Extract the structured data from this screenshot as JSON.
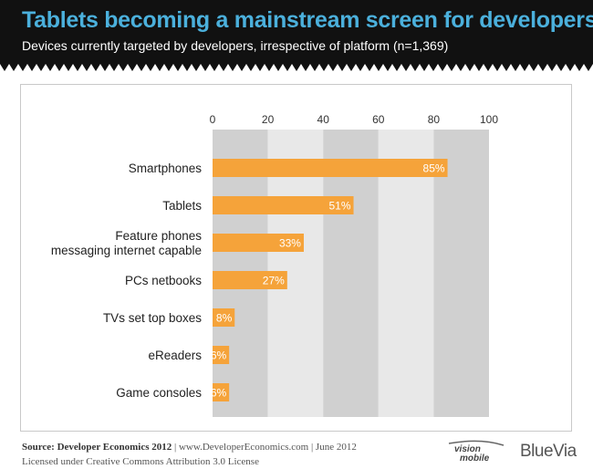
{
  "header": {
    "title": "Tablets becoming a mainstream screen for developers",
    "subtitle": "Devices currently targeted by developers, irrespective of platform (n=1,369)"
  },
  "chart_data": {
    "type": "bar",
    "orientation": "horizontal",
    "categories": [
      "Smartphones",
      "Tablets",
      [
        "Feature phones",
        "messaging internet capable"
      ],
      "PCs netbooks",
      "TVs set top boxes",
      "eReaders",
      "Game consoles"
    ],
    "values": [
      85,
      51,
      33,
      27,
      8,
      6,
      6
    ],
    "labels": [
      "85%",
      "51%",
      "33%",
      "27%",
      "8%",
      "6%",
      "6%"
    ],
    "xlim": [
      0,
      100
    ],
    "ticks": [
      0,
      20,
      40,
      60,
      80,
      100
    ],
    "axis_position": "top",
    "bar_color": "#f5a33a",
    "band_colors": [
      "#d0d0d0",
      "#e8e8e8"
    ],
    "grid": true,
    "legend": "none"
  },
  "footer": {
    "source_label": "Source: Developer Economics 2012",
    "source_rest": " | www.DeveloperEconomics.com | June 2012",
    "license": "Licensed under Creative Commons Attribution 3.0 License"
  },
  "logos": {
    "vision": "vision",
    "mobile": "mobile",
    "bluevia": "BlueVia"
  },
  "colors": {
    "header_bg": "#111111",
    "title": "#4bb0dc",
    "bar": "#f5a33a"
  }
}
